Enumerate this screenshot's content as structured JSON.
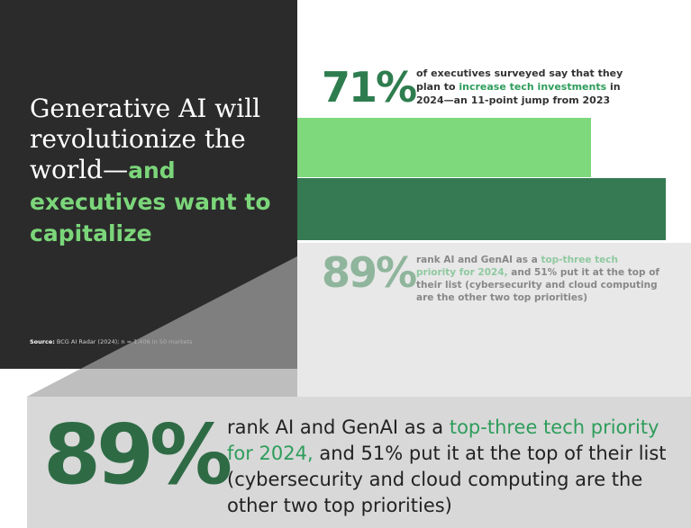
{
  "headline": {
    "plain": "Generative AI will revolutionize the world—",
    "accent": "and executives want to capitalize"
  },
  "source": {
    "label": "Source:",
    "text": "BCG AI Radar (2024); n = 1,406 in 50 markets"
  },
  "stat_top": {
    "value": "71%",
    "text_before": "of executives surveyed say that they plan to ",
    "text_accent": "increase tech investments",
    "text_after": " in 2024—an 11-point jump from 2023"
  },
  "stat_bottom": {
    "value": "89%",
    "text_before": "rank AI and GenAI as a ",
    "text_accent": "top-three tech priority for 2024,",
    "text_after": " and 51% put it at the top of their list (cybersecurity and cloud computing are the other two top priorities)"
  },
  "zoom": {
    "value": "89%",
    "text_before": "rank AI and GenAI as a ",
    "text_accent": "top-three tech priority for 2024,",
    "text_after": " and 51% put it at the top of their list (cybersecurity and cloud computing are the other two top priorities)"
  },
  "colors": {
    "dark_panel": "#2b2b2b",
    "accent_light": "#7bd67a",
    "accent_dark": "#357a52",
    "zoom_bg": "#d8d8d8"
  }
}
